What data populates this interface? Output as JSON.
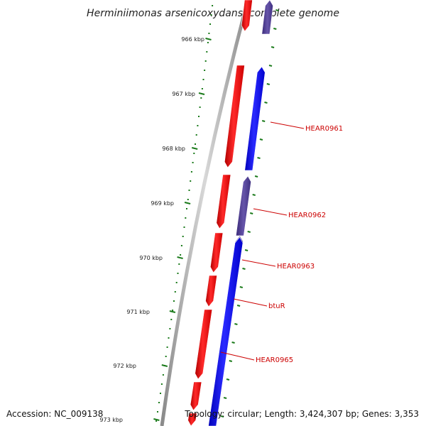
{
  "title": "Herminiimonas arsenicoxydans, complete genome",
  "footer": {
    "accession": "Accession: NC_009138",
    "topology": "Topology: circular; Length: 3,424,307 bp; Genes: 3,353"
  },
  "tick_labels": [
    "966 kbp",
    "967 kbp",
    "968 kbp",
    "969 kbp",
    "970 kbp",
    "971 kbp",
    "972 kbp",
    "973 kbp"
  ],
  "gene_labels": [
    "HEAR0961",
    "HEAR0962",
    "HEAR0963",
    "btuR",
    "HEAR0965"
  ],
  "colors": {
    "forward_strand": "#ff0000",
    "reverse_strand": "#0000ff",
    "reverse_strand_alt": "#4b3a8c",
    "backbone": "#808080",
    "ticks": "#1a7a1a",
    "gene_label": "#cc0000"
  },
  "icons": {
    "forward_gene": "red-arrow",
    "reverse_gene": "blue-arrow"
  }
}
